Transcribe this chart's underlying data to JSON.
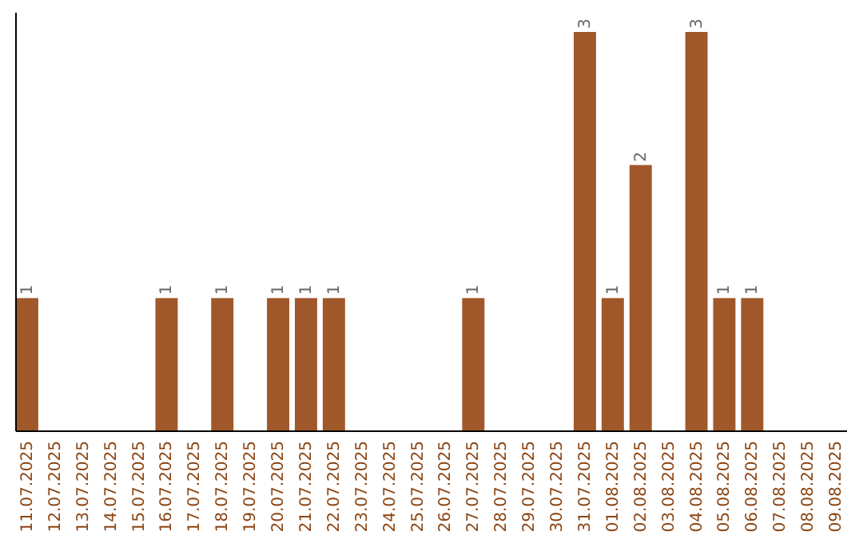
{
  "chart_data": {
    "type": "bar",
    "categories": [
      "11.07.2025",
      "12.07.2025",
      "13.07.2025",
      "14.07.2025",
      "15.07.2025",
      "16.07.2025",
      "17.07.2025",
      "18.07.2025",
      "19.07.2025",
      "20.07.2025",
      "21.07.2025",
      "22.07.2025",
      "23.07.2025",
      "24.07.2025",
      "25.07.2025",
      "26.07.2025",
      "27.07.2025",
      "28.07.2025",
      "29.07.2025",
      "30.07.2025",
      "31.07.2025",
      "01.08.2025",
      "02.08.2025",
      "03.08.2025",
      "04.08.2025",
      "05.08.2025",
      "06.08.2025",
      "07.08.2025",
      "08.08.2025",
      "09.08.2025"
    ],
    "values": [
      1,
      0,
      0,
      0,
      0,
      1,
      0,
      1,
      0,
      1,
      1,
      1,
      0,
      0,
      0,
      0,
      1,
      0,
      0,
      0,
      3,
      1,
      2,
      0,
      3,
      1,
      1,
      0,
      0,
      0
    ],
    "value_labels": [
      "1",
      null,
      null,
      null,
      null,
      "1",
      null,
      "1",
      null,
      "1",
      "1",
      "1",
      null,
      null,
      null,
      null,
      "1",
      null,
      null,
      null,
      "3",
      "1",
      "2",
      null,
      "3",
      "1",
      "1",
      null,
      null,
      null
    ],
    "color": "#a0582a",
    "tick_labels": "x"
  }
}
